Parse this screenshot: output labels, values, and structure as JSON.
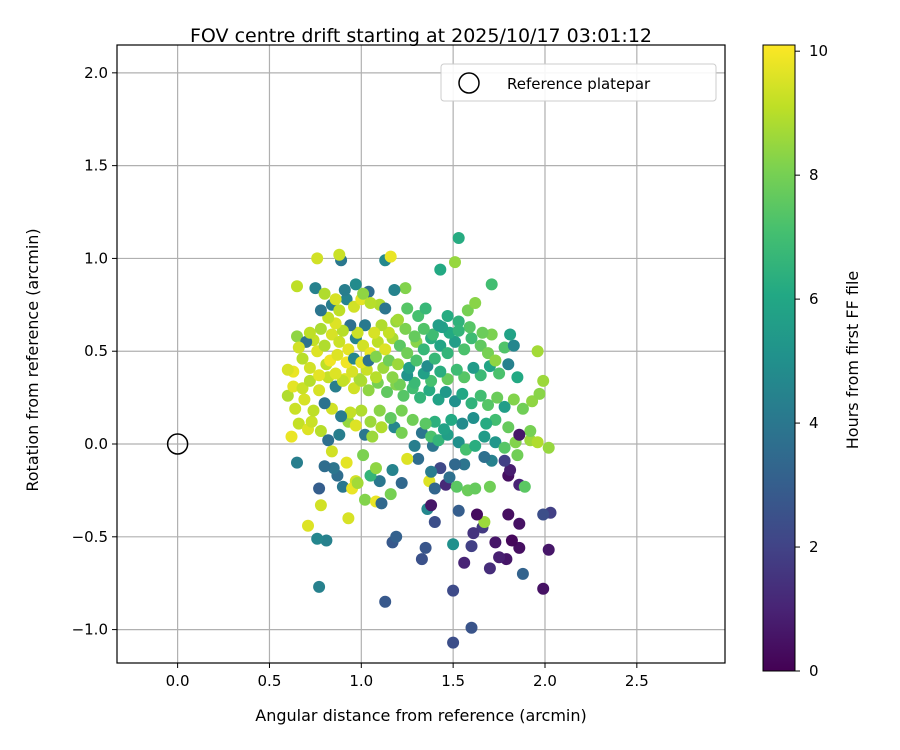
{
  "chart_data": {
    "type": "scatter",
    "title": "FOV centre drift starting at 2025/10/17 03:01:12",
    "xlabel": "Angular distance from reference (arcmin)",
    "ylabel": "Rotation from reference (arcmin)",
    "xlim": [
      -0.33,
      2.98
    ],
    "ylim": [
      -1.18,
      2.15
    ],
    "xticks": [
      0.0,
      0.5,
      1.0,
      1.5,
      2.0,
      2.5
    ],
    "yticks": [
      -1.0,
      -0.5,
      0.0,
      0.5,
      1.0,
      1.5,
      2.0
    ],
    "xtick_labels": [
      "0.0",
      "0.5",
      "1.0",
      "1.5",
      "2.0",
      "2.5"
    ],
    "ytick_labels": [
      "−1.0",
      "−0.5",
      "0.0",
      "0.5",
      "1.0",
      "1.5",
      "2.0"
    ],
    "grid": true,
    "legend": {
      "label": "Reference platepar",
      "location": "upper right"
    },
    "reference_point": {
      "x": 0.0,
      "y": 0.0
    },
    "colorbar": {
      "label": "Hours from first FF file",
      "range": [
        0,
        10.1
      ],
      "ticks": [
        0,
        2,
        4,
        6,
        8,
        10
      ],
      "tick_labels": [
        "0",
        "2",
        "4",
        "6",
        "8",
        "10"
      ],
      "colormap": "viridis"
    },
    "points": [
      [
        1.39,
        -0.01,
        3.9
      ],
      [
        1.5,
        -1.07,
        2.4
      ],
      [
        1.6,
        -0.99,
        2.6
      ],
      [
        1.5,
        -0.79,
        2.3
      ],
      [
        1.13,
        -0.85,
        2.8
      ],
      [
        0.77,
        -0.77,
        4.4
      ],
      [
        1.88,
        -0.7,
        3.2
      ],
      [
        1.99,
        -0.78,
        0.5
      ],
      [
        1.79,
        -0.62,
        0.6
      ],
      [
        1.7,
        -0.67,
        1.3
      ],
      [
        1.56,
        -0.64,
        1.0
      ],
      [
        1.33,
        -0.62,
        2.5
      ],
      [
        1.35,
        -0.56,
        2.7
      ],
      [
        1.6,
        -0.55,
        1.9
      ],
      [
        1.75,
        -0.61,
        0.9
      ],
      [
        2.02,
        -0.57,
        0.6
      ],
      [
        1.86,
        -0.56,
        0.4
      ],
      [
        1.82,
        -0.52,
        0.2
      ],
      [
        1.73,
        -0.53,
        0.6
      ],
      [
        1.66,
        -0.45,
        1.7
      ],
      [
        1.61,
        -0.48,
        1.5
      ],
      [
        1.5,
        -0.54,
        5.0
      ],
      [
        1.4,
        -0.42,
        2.4
      ],
      [
        1.17,
        -0.53,
        2.8
      ],
      [
        1.19,
        -0.5,
        3.1
      ],
      [
        1.67,
        -0.42,
        8.6
      ],
      [
        1.63,
        -0.38,
        0.3
      ],
      [
        1.8,
        -0.38,
        0.4
      ],
      [
        1.86,
        -0.43,
        0.5
      ],
      [
        2.03,
        -0.37,
        1.9
      ],
      [
        1.99,
        -0.38,
        2.4
      ],
      [
        1.53,
        -0.36,
        3.0
      ],
      [
        1.36,
        -0.35,
        4.7
      ],
      [
        1.38,
        -0.33,
        0.6
      ],
      [
        0.81,
        -0.52,
        4.4
      ],
      [
        0.76,
        -0.51,
        4.6
      ],
      [
        0.71,
        -0.44,
        9.6
      ],
      [
        0.93,
        -0.4,
        9.5
      ],
      [
        0.78,
        -0.33,
        9.4
      ],
      [
        1.02,
        -0.3,
        8.2
      ],
      [
        1.08,
        -0.31,
        9.8
      ],
      [
        1.11,
        -0.32,
        3.4
      ],
      [
        1.16,
        -0.27,
        8.0
      ],
      [
        1.22,
        -0.21,
        3.4
      ],
      [
        1.1,
        -0.2,
        4.0
      ],
      [
        1.05,
        -0.17,
        6.6
      ],
      [
        0.97,
        -0.2,
        9.4
      ],
      [
        0.87,
        -0.17,
        3.6
      ],
      [
        0.9,
        -0.23,
        4.0
      ],
      [
        0.95,
        -0.24,
        9.8
      ],
      [
        0.98,
        -0.21,
        8.7
      ],
      [
        0.77,
        -0.24,
        3.0
      ],
      [
        1.37,
        -0.2,
        9.6
      ],
      [
        1.4,
        -0.24,
        3.3
      ],
      [
        1.46,
        -0.22,
        1.2
      ],
      [
        1.48,
        -0.18,
        3.7
      ],
      [
        1.52,
        -0.23,
        7.5
      ],
      [
        1.58,
        -0.25,
        7.8
      ],
      [
        1.62,
        -0.24,
        7.7
      ],
      [
        1.7,
        -0.23,
        7.9
      ],
      [
        1.8,
        -0.17,
        0.4
      ],
      [
        1.86,
        -0.22,
        1.0
      ],
      [
        1.89,
        -0.23,
        7.5
      ],
      [
        1.81,
        -0.14,
        0.8
      ],
      [
        1.85,
        -0.06,
        7.9
      ],
      [
        1.78,
        -0.09,
        1.9
      ],
      [
        1.71,
        -0.09,
        4.4
      ],
      [
        1.67,
        -0.07,
        3.7
      ],
      [
        1.56,
        -0.11,
        3.9
      ],
      [
        1.51,
        -0.11,
        3.4
      ],
      [
        1.43,
        -0.13,
        2.2
      ],
      [
        1.38,
        -0.15,
        4.2
      ],
      [
        1.31,
        -0.08,
        3.6
      ],
      [
        1.25,
        -0.08,
        9.6
      ],
      [
        1.17,
        -0.14,
        4.5
      ],
      [
        1.08,
        -0.13,
        8.4
      ],
      [
        1.01,
        -0.06,
        8.1
      ],
      [
        0.92,
        -0.1,
        9.7
      ],
      [
        0.85,
        -0.13,
        3.9
      ],
      [
        0.8,
        -0.12,
        3.6
      ],
      [
        0.65,
        -0.1,
        4.3
      ],
      [
        0.62,
        0.04,
        9.8
      ],
      [
        0.66,
        0.11,
        9.2
      ],
      [
        0.71,
        0.08,
        9.6
      ],
      [
        0.73,
        0.12,
        9.3
      ],
      [
        0.78,
        0.07,
        9.0
      ],
      [
        0.82,
        0.02,
        3.7
      ],
      [
        0.84,
        -0.04,
        9.4
      ],
      [
        0.88,
        0.05,
        4.3
      ],
      [
        0.93,
        0.12,
        8.5
      ],
      [
        0.97,
        0.1,
        9.6
      ],
      [
        1.02,
        0.05,
        4.0
      ],
      [
        1.06,
        0.04,
        8.6
      ],
      [
        1.11,
        0.09,
        8.9
      ],
      [
        1.18,
        0.09,
        4.6
      ],
      [
        1.22,
        0.06,
        8.0
      ],
      [
        1.29,
        -0.01,
        4.3
      ],
      [
        1.33,
        0.06,
        3.9
      ],
      [
        1.38,
        0.04,
        7.2
      ],
      [
        1.42,
        0.02,
        6.6
      ],
      [
        1.47,
        0.05,
        5.6
      ],
      [
        1.53,
        0.01,
        5.0
      ],
      [
        1.57,
        -0.03,
        7.1
      ],
      [
        1.62,
        -0.01,
        6.3
      ],
      [
        1.67,
        0.04,
        5.5
      ],
      [
        1.73,
        0.01,
        5.3
      ],
      [
        1.78,
        -0.02,
        7.4
      ],
      [
        1.84,
        0.01,
        8.2
      ],
      [
        1.92,
        0.02,
        8.6
      ],
      [
        1.96,
        0.01,
        8.9
      ],
      [
        2.02,
        -0.02,
        8.5
      ],
      [
        1.92,
        0.07,
        8.0
      ],
      [
        1.86,
        0.05,
        0.6
      ],
      [
        1.8,
        0.09,
        7.7
      ],
      [
        1.73,
        0.13,
        7.0
      ],
      [
        1.68,
        0.11,
        6.2
      ],
      [
        1.61,
        0.14,
        5.0
      ],
      [
        1.55,
        0.11,
        4.8
      ],
      [
        1.49,
        0.13,
        6.1
      ],
      [
        1.45,
        0.08,
        5.8
      ],
      [
        1.4,
        0.12,
        6.4
      ],
      [
        1.35,
        0.11,
        7.5
      ],
      [
        1.28,
        0.13,
        7.9
      ],
      [
        1.22,
        0.18,
        8.0
      ],
      [
        1.16,
        0.14,
        7.6
      ],
      [
        1.1,
        0.18,
        8.3
      ],
      [
        1.05,
        0.12,
        8.6
      ],
      [
        1.0,
        0.18,
        8.9
      ],
      [
        0.94,
        0.17,
        9.2
      ],
      [
        0.89,
        0.15,
        4.2
      ],
      [
        0.84,
        0.19,
        9.4
      ],
      [
        0.8,
        0.22,
        3.8
      ],
      [
        0.74,
        0.18,
        9.1
      ],
      [
        0.69,
        0.24,
        9.5
      ],
      [
        0.64,
        0.19,
        9.3
      ],
      [
        0.6,
        0.26,
        8.9
      ],
      [
        0.63,
        0.31,
        9.7
      ],
      [
        0.68,
        0.3,
        9.3
      ],
      [
        0.72,
        0.34,
        9.0
      ],
      [
        0.77,
        0.29,
        9.5
      ],
      [
        0.82,
        0.36,
        9.2
      ],
      [
        0.86,
        0.31,
        4.3
      ],
      [
        0.91,
        0.35,
        9.6
      ],
      [
        0.96,
        0.3,
        9.4
      ],
      [
        1.0,
        0.34,
        8.9
      ],
      [
        1.04,
        0.29,
        8.4
      ],
      [
        1.09,
        0.33,
        8.0
      ],
      [
        1.14,
        0.28,
        7.6
      ],
      [
        1.19,
        0.32,
        8.2
      ],
      [
        1.23,
        0.26,
        7.4
      ],
      [
        1.28,
        0.3,
        7.0
      ],
      [
        1.32,
        0.25,
        6.6
      ],
      [
        1.37,
        0.29,
        6.2
      ],
      [
        1.42,
        0.24,
        5.8
      ],
      [
        1.46,
        0.28,
        5.4
      ],
      [
        1.51,
        0.23,
        5.0
      ],
      [
        1.55,
        0.27,
        6.0
      ],
      [
        1.6,
        0.22,
        6.5
      ],
      [
        1.65,
        0.26,
        7.0
      ],
      [
        1.69,
        0.21,
        7.4
      ],
      [
        1.74,
        0.25,
        7.8
      ],
      [
        1.78,
        0.2,
        5.6
      ],
      [
        1.83,
        0.24,
        8.2
      ],
      [
        1.88,
        0.19,
        7.9
      ],
      [
        1.93,
        0.23,
        8.4
      ],
      [
        1.97,
        0.27,
        8.3
      ],
      [
        1.99,
        0.34,
        8.6
      ],
      [
        1.96,
        0.5,
        8.7
      ],
      [
        1.85,
        0.36,
        6.1
      ],
      [
        1.8,
        0.43,
        4.4
      ],
      [
        1.75,
        0.38,
        7.2
      ],
      [
        1.7,
        0.42,
        5.9
      ],
      [
        1.65,
        0.37,
        6.8
      ],
      [
        1.61,
        0.41,
        5.5
      ],
      [
        1.56,
        0.36,
        7.4
      ],
      [
        1.52,
        0.4,
        6.9
      ],
      [
        1.47,
        0.35,
        7.7
      ],
      [
        1.43,
        0.39,
        6.3
      ],
      [
        1.38,
        0.34,
        7.1
      ],
      [
        1.34,
        0.38,
        5.7
      ],
      [
        1.29,
        0.33,
        6.8
      ],
      [
        1.25,
        0.37,
        5.2
      ],
      [
        1.21,
        0.32,
        7.9
      ],
      [
        1.17,
        0.36,
        8.3
      ],
      [
        1.12,
        0.41,
        8.6
      ],
      [
        1.08,
        0.36,
        9.0
      ],
      [
        1.03,
        0.4,
        9.3
      ],
      [
        0.99,
        0.35,
        8.8
      ],
      [
        0.95,
        0.39,
        9.5
      ],
      [
        0.9,
        0.34,
        9.2
      ],
      [
        0.86,
        0.38,
        9.6
      ],
      [
        0.81,
        0.43,
        9.1
      ],
      [
        0.77,
        0.37,
        9.7
      ],
      [
        0.72,
        0.41,
        9.4
      ],
      [
        0.68,
        0.46,
        9.0
      ],
      [
        0.63,
        0.39,
        9.8
      ],
      [
        0.6,
        0.4,
        9.5
      ],
      [
        0.65,
        0.58,
        8.4
      ],
      [
        0.74,
        0.56,
        9.2
      ],
      [
        0.76,
        0.5,
        9.6
      ],
      [
        0.8,
        0.53,
        8.9
      ],
      [
        0.84,
        0.59,
        9.5
      ],
      [
        0.88,
        0.55,
        9.3
      ],
      [
        0.93,
        0.51,
        9.7
      ],
      [
        0.97,
        0.57,
        4.5
      ],
      [
        1.01,
        0.53,
        9.4
      ],
      [
        1.05,
        0.49,
        9.8
      ],
      [
        1.09,
        0.55,
        9.1
      ],
      [
        1.13,
        0.51,
        9.6
      ],
      [
        1.17,
        0.57,
        8.8
      ],
      [
        1.21,
        0.53,
        7.5
      ],
      [
        1.25,
        0.49,
        7.9
      ],
      [
        1.3,
        0.55,
        8.3
      ],
      [
        1.34,
        0.51,
        6.7
      ],
      [
        1.38,
        0.57,
        6.3
      ],
      [
        1.43,
        0.53,
        5.9
      ],
      [
        1.47,
        0.49,
        6.6
      ],
      [
        1.51,
        0.55,
        5.6
      ],
      [
        1.56,
        0.51,
        7.2
      ],
      [
        1.6,
        0.57,
        6.9
      ],
      [
        1.65,
        0.53,
        7.6
      ],
      [
        1.69,
        0.49,
        8.0
      ],
      [
        1.73,
        0.45,
        8.4
      ],
      [
        1.78,
        0.52,
        7.3
      ],
      [
        1.83,
        0.53,
        4.6
      ],
      [
        1.81,
        0.59,
        5.8
      ],
      [
        1.71,
        0.59,
        8.1
      ],
      [
        1.66,
        0.6,
        7.8
      ],
      [
        1.59,
        0.63,
        7.4
      ],
      [
        1.53,
        0.66,
        6.5
      ],
      [
        1.48,
        0.6,
        6.1
      ],
      [
        1.44,
        0.63,
        5.7
      ],
      [
        1.39,
        0.59,
        6.9
      ],
      [
        1.34,
        0.62,
        7.3
      ],
      [
        1.29,
        0.58,
        7.7
      ],
      [
        1.24,
        0.62,
        8.1
      ],
      [
        1.19,
        0.66,
        8.5
      ],
      [
        1.15,
        0.6,
        9.2
      ],
      [
        1.11,
        0.64,
        8.9
      ],
      [
        1.07,
        0.6,
        9.5
      ],
      [
        1.02,
        0.64,
        4.1
      ],
      [
        0.98,
        0.6,
        9.3
      ],
      [
        0.94,
        0.64,
        3.7
      ],
      [
        0.9,
        0.61,
        9.0
      ],
      [
        0.86,
        0.65,
        9.6
      ],
      [
        0.82,
        0.68,
        9.2
      ],
      [
        0.78,
        0.72,
        3.9
      ],
      [
        0.84,
        0.75,
        4.2
      ],
      [
        0.88,
        0.72,
        9.1
      ],
      [
        0.92,
        0.78,
        4.5
      ],
      [
        0.96,
        0.74,
        9.4
      ],
      [
        1.0,
        0.78,
        9.7
      ],
      [
        1.04,
        0.82,
        3.6
      ],
      [
        1.1,
        0.75,
        8.9
      ],
      [
        1.13,
        0.73,
        3.9
      ],
      [
        1.2,
        0.67,
        8.7
      ],
      [
        1.25,
        0.73,
        7.4
      ],
      [
        1.31,
        0.69,
        7.1
      ],
      [
        1.35,
        0.73,
        6.7
      ],
      [
        1.42,
        0.64,
        5.6
      ],
      [
        1.47,
        0.69,
        6.2
      ],
      [
        1.53,
        0.61,
        6.6
      ],
      [
        1.58,
        0.72,
        8.0
      ],
      [
        1.62,
        0.76,
        8.3
      ],
      [
        1.71,
        0.86,
        7.0
      ],
      [
        1.51,
        0.98,
        8.5
      ],
      [
        1.53,
        1.11,
        6.2
      ],
      [
        1.43,
        0.94,
        6.1
      ],
      [
        1.24,
        0.84,
        8.2
      ],
      [
        1.18,
        0.83,
        4.5
      ],
      [
        1.13,
        0.99,
        4.7
      ],
      [
        1.16,
        1.01,
        9.8
      ],
      [
        0.89,
        0.99,
        4.0
      ],
      [
        0.88,
        1.02,
        9.3
      ],
      [
        0.76,
        1.0,
        9.4
      ],
      [
        0.65,
        0.85,
        9.1
      ],
      [
        0.75,
        0.84,
        4.4
      ],
      [
        0.8,
        0.81,
        8.9
      ],
      [
        0.86,
        0.78,
        9.5
      ],
      [
        0.91,
        0.83,
        4.3
      ],
      [
        0.97,
        0.86,
        4.8
      ],
      [
        1.01,
        0.81,
        8.4
      ],
      [
        1.05,
        0.76,
        9.0
      ],
      [
        0.7,
        0.55,
        3.8
      ],
      [
        0.66,
        0.52,
        9.4
      ],
      [
        0.72,
        0.6,
        9.1
      ],
      [
        0.78,
        0.62,
        8.8
      ],
      [
        0.83,
        0.45,
        9.9
      ],
      [
        0.87,
        0.48,
        9.6
      ],
      [
        0.92,
        0.44,
        9.9
      ],
      [
        0.96,
        0.46,
        4.6
      ],
      [
        1.0,
        0.44,
        9.7
      ],
      [
        1.04,
        0.45,
        3.8
      ],
      [
        1.08,
        0.47,
        8.2
      ],
      [
        1.15,
        0.45,
        7.9
      ],
      [
        1.2,
        0.43,
        8.6
      ],
      [
        1.26,
        0.41,
        5.6
      ],
      [
        1.3,
        0.45,
        7.2
      ],
      [
        1.36,
        0.42,
        4.9
      ],
      [
        1.4,
        0.46,
        6.7
      ]
    ]
  }
}
